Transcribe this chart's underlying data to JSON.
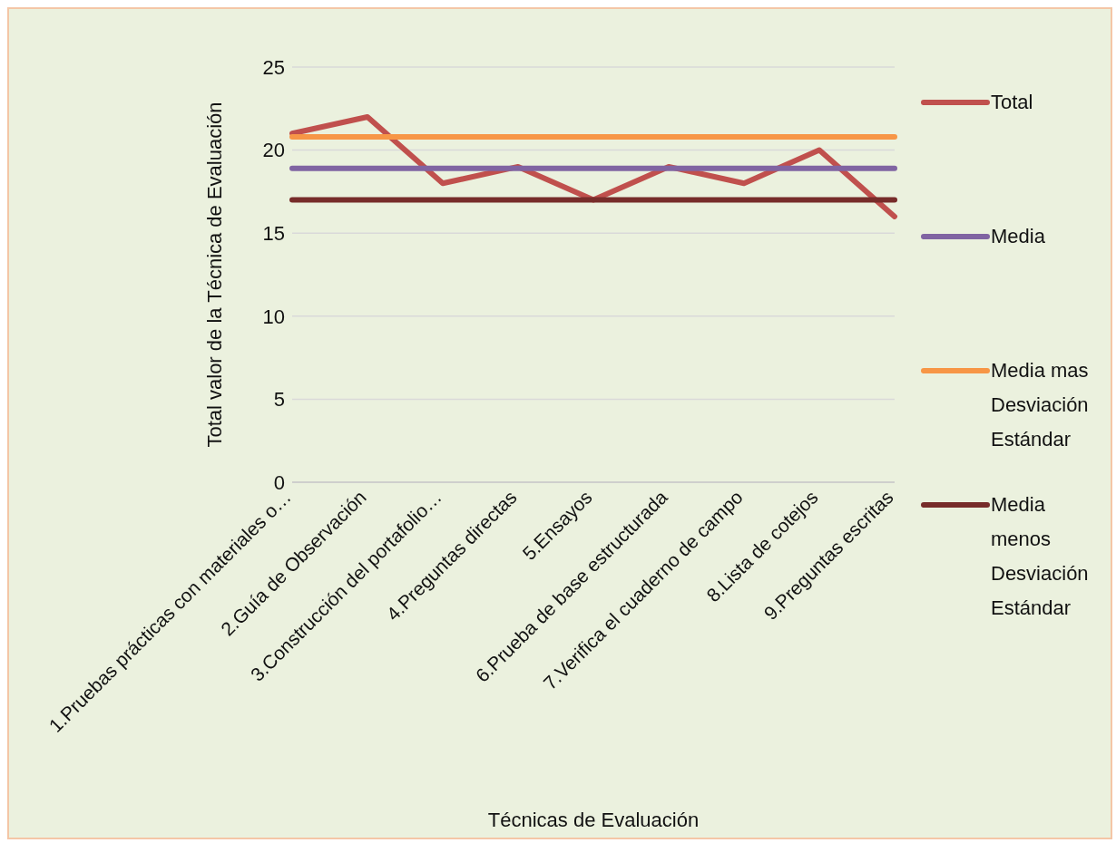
{
  "chart_data": {
    "type": "line",
    "xlabel": "Técnicas de Evaluación",
    "ylabel": "Total valor de la Técnica de Evaluación",
    "categories": [
      "1.Pruebas prácticas con materiales o…",
      "2.Guía de Observación",
      "3.Construcción del portafolio…",
      "4.Preguntas directas",
      "5.Ensayos",
      "6.Prueba de base estructurada",
      "7.Verifica el cuaderno de campo",
      "8.Lista de cotejos",
      "9.Preguntas escritas"
    ],
    "series": [
      {
        "name": "Total",
        "color": "#c0504d",
        "values": [
          21,
          22,
          18,
          19,
          17,
          19,
          18,
          20,
          16
        ]
      },
      {
        "name": "Media",
        "color": "#8064a2",
        "values": [
          18.9,
          18.9,
          18.9,
          18.9,
          18.9,
          18.9,
          18.9,
          18.9,
          18.9
        ]
      },
      {
        "name": "Media mas Desviación Estándar",
        "color": "#f79646",
        "values": [
          20.8,
          20.8,
          20.8,
          20.8,
          20.8,
          20.8,
          20.8,
          20.8,
          20.8
        ]
      },
      {
        "name": "Media menos Desviación Estándar",
        "color": "#772c2a",
        "values": [
          17,
          17,
          17,
          17,
          17,
          17,
          17,
          17,
          17
        ]
      }
    ],
    "ylim": [
      0,
      25
    ],
    "yticks": [
      0,
      5,
      10,
      15,
      20,
      25
    ],
    "grid": "y",
    "legend": "right",
    "marker": "none",
    "line_style": "solid"
  }
}
